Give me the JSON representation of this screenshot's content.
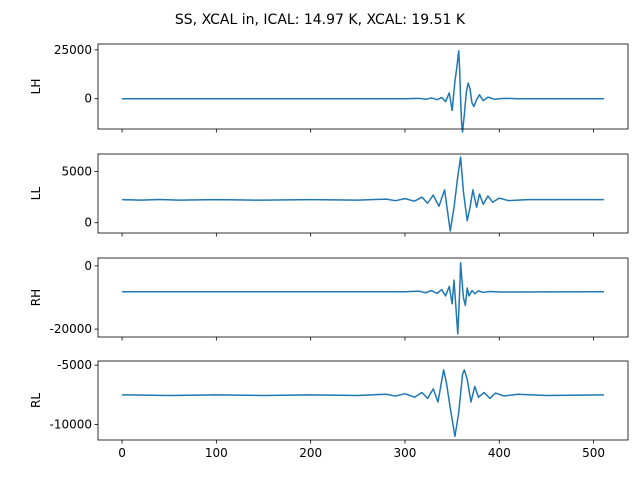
{
  "figure": {
    "title": "SS, XCAL in, ICAL: 14.97 K, XCAL: 19.51 K"
  },
  "style": {
    "line_color": "#1f77b4",
    "axis_color": "#000000",
    "background": "#ffffff"
  },
  "chart_data": [
    {
      "type": "line",
      "ylabel": "LH",
      "xlabel": "",
      "xlim": [
        -25.5,
        536.5
      ],
      "ylim": [
        -15500,
        28000
      ],
      "yticks": [
        0,
        25000
      ],
      "xticks": [
        0,
        100,
        200,
        300,
        400,
        500
      ],
      "show_xtick_labels": false,
      "grid": false,
      "series": [
        {
          "values": [
            [
              0,
              0
            ],
            [
              300,
              0
            ],
            [
              315,
              200
            ],
            [
              322,
              -300
            ],
            [
              328,
              400
            ],
            [
              334,
              -500
            ],
            [
              339,
              600
            ],
            [
              343,
              -1500
            ],
            [
              347,
              3000
            ],
            [
              350,
              -6000
            ],
            [
              353,
              9000
            ],
            [
              355,
              16000
            ],
            [
              357,
              24500
            ],
            [
              358,
              15000
            ],
            [
              359,
              0
            ],
            [
              360,
              -12000
            ],
            [
              361,
              -17000
            ],
            [
              363,
              -8000
            ],
            [
              365,
              3000
            ],
            [
              367,
              8000
            ],
            [
              369,
              5000
            ],
            [
              371,
              -2000
            ],
            [
              373,
              -4000
            ],
            [
              376,
              -500
            ],
            [
              379,
              2000
            ],
            [
              383,
              -1000
            ],
            [
              388,
              800
            ],
            [
              395,
              -300
            ],
            [
              405,
              200
            ],
            [
              420,
              0
            ],
            [
              511,
              0
            ]
          ]
        }
      ]
    },
    {
      "type": "line",
      "ylabel": "LL",
      "xlabel": "",
      "xlim": [
        -25.5,
        536.5
      ],
      "ylim": [
        -1000,
        6700
      ],
      "yticks": [
        0,
        5000
      ],
      "xticks": [
        0,
        100,
        200,
        300,
        400,
        500
      ],
      "show_xtick_labels": false,
      "grid": false,
      "series": [
        {
          "values": [
            [
              0,
              2250
            ],
            [
              20,
              2200
            ],
            [
              40,
              2260
            ],
            [
              60,
              2200
            ],
            [
              100,
              2250
            ],
            [
              150,
              2200
            ],
            [
              200,
              2250
            ],
            [
              250,
              2200
            ],
            [
              280,
              2300
            ],
            [
              290,
              2150
            ],
            [
              300,
              2350
            ],
            [
              310,
              2100
            ],
            [
              318,
              2500
            ],
            [
              324,
              1900
            ],
            [
              330,
              2700
            ],
            [
              336,
              1600
            ],
            [
              342,
              3200
            ],
            [
              348,
              -800
            ],
            [
              352,
              1500
            ],
            [
              356,
              4500
            ],
            [
              359,
              6400
            ],
            [
              362,
              3000
            ],
            [
              366,
              200
            ],
            [
              369,
              1500
            ],
            [
              372,
              3200
            ],
            [
              376,
              1500
            ],
            [
              379,
              2800
            ],
            [
              383,
              1800
            ],
            [
              388,
              2600
            ],
            [
              393,
              2000
            ],
            [
              400,
              2400
            ],
            [
              410,
              2150
            ],
            [
              430,
              2250
            ],
            [
              511,
              2250
            ]
          ]
        }
      ]
    },
    {
      "type": "line",
      "ylabel": "RH",
      "xlabel": "",
      "xlim": [
        -25.5,
        536.5
      ],
      "ylim": [
        -22500,
        2500
      ],
      "yticks": [
        -20000,
        0
      ],
      "xticks": [
        0,
        100,
        200,
        300,
        400,
        500
      ],
      "show_xtick_labels": false,
      "grid": false,
      "series": [
        {
          "values": [
            [
              0,
              -8200
            ],
            [
              300,
              -8200
            ],
            [
              315,
              -8000
            ],
            [
              322,
              -8500
            ],
            [
              328,
              -7800
            ],
            [
              334,
              -8700
            ],
            [
              339,
              -7500
            ],
            [
              343,
              -9500
            ],
            [
              347,
              -6500
            ],
            [
              350,
              -12000
            ],
            [
              352,
              -4500
            ],
            [
              354,
              -13000
            ],
            [
              356,
              -21500
            ],
            [
              357,
              -15000
            ],
            [
              358,
              -8000
            ],
            [
              359,
              1000
            ],
            [
              360,
              -3000
            ],
            [
              362,
              -10000
            ],
            [
              364,
              -12500
            ],
            [
              366,
              -7000
            ],
            [
              368,
              -9500
            ],
            [
              371,
              -7800
            ],
            [
              374,
              -8800
            ],
            [
              378,
              -7900
            ],
            [
              383,
              -8400
            ],
            [
              390,
              -8100
            ],
            [
              400,
              -8250
            ],
            [
              511,
              -8200
            ]
          ]
        }
      ]
    },
    {
      "type": "line",
      "ylabel": "RL",
      "xlabel": "",
      "xlim": [
        -25.5,
        536.5
      ],
      "ylim": [
        -11300,
        -4650
      ],
      "yticks": [
        -10000,
        -5000
      ],
      "xticks": [
        0,
        100,
        200,
        300,
        400,
        500
      ],
      "xtick_labels": [
        "0",
        "100",
        "200",
        "300",
        "400",
        "500"
      ],
      "show_xtick_labels": true,
      "grid": false,
      "series": [
        {
          "values": [
            [
              0,
              -7500
            ],
            [
              50,
              -7550
            ],
            [
              100,
              -7500
            ],
            [
              150,
              -7550
            ],
            [
              200,
              -7500
            ],
            [
              250,
              -7550
            ],
            [
              280,
              -7450
            ],
            [
              290,
              -7600
            ],
            [
              300,
              -7400
            ],
            [
              310,
              -7700
            ],
            [
              318,
              -7300
            ],
            [
              324,
              -7800
            ],
            [
              330,
              -7000
            ],
            [
              335,
              -8100
            ],
            [
              341,
              -5400
            ],
            [
              344,
              -6500
            ],
            [
              348,
              -8600
            ],
            [
              353,
              -11000
            ],
            [
              357,
              -9000
            ],
            [
              361,
              -5800
            ],
            [
              363,
              -5400
            ],
            [
              366,
              -6200
            ],
            [
              370,
              -8100
            ],
            [
              374,
              -6800
            ],
            [
              378,
              -7700
            ],
            [
              384,
              -7300
            ],
            [
              390,
              -7800
            ],
            [
              396,
              -7350
            ],
            [
              405,
              -7600
            ],
            [
              420,
              -7450
            ],
            [
              450,
              -7550
            ],
            [
              511,
              -7500
            ]
          ]
        }
      ]
    }
  ]
}
